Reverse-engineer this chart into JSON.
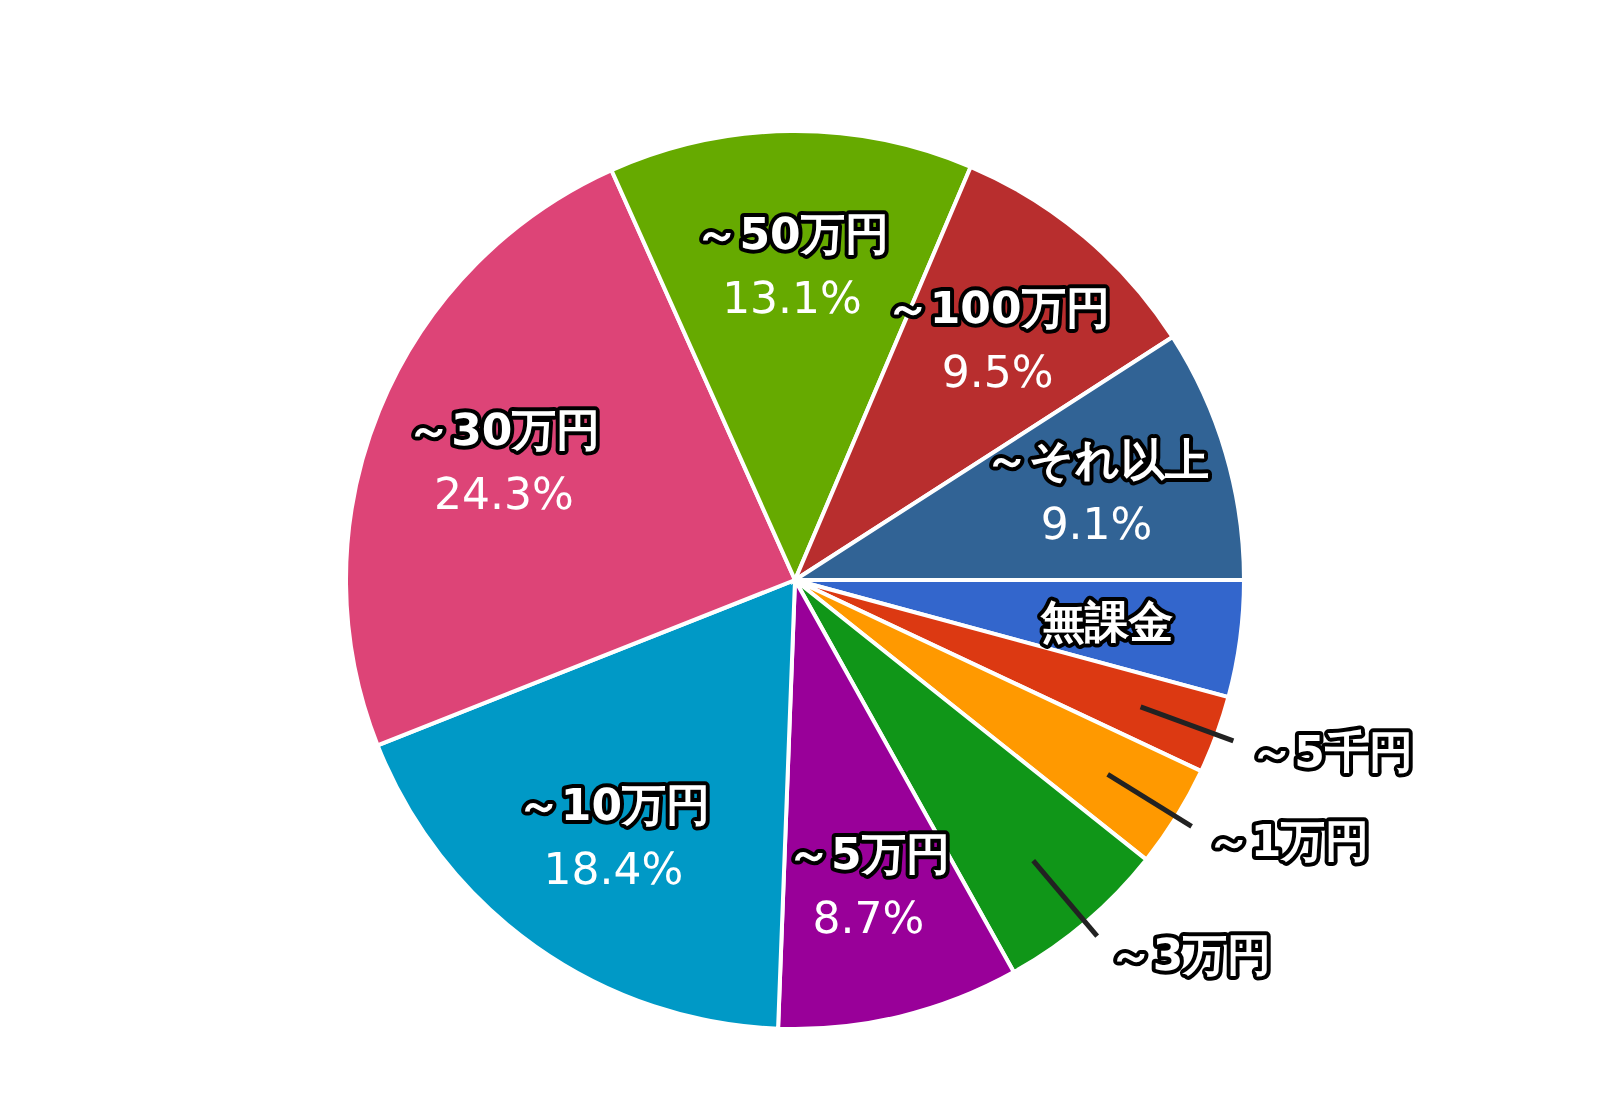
{
  "chart_data": {
    "type": "pie",
    "categories": [
      "無課金",
      "～5千円",
      "～1万円",
      "～3万円",
      "～5万円",
      "～10万円",
      "～30万円",
      "～50万円",
      "～100万円",
      "～それ以上"
    ],
    "values": [
      4.2,
      2.8,
      3.7,
      6.2,
      8.7,
      18.4,
      24.3,
      13.1,
      9.5,
      9.1
    ],
    "colors": [
      "#3366cc",
      "#dc3912",
      "#ff9900",
      "#109618",
      "#990099",
      "#0099c6",
      "#dd4477",
      "#66aa00",
      "#b82e2e",
      "#316395"
    ],
    "value_labels": [
      null,
      null,
      null,
      null,
      "8.7%",
      "18.4%",
      "24.3%",
      "13.1%",
      "9.5%",
      "9.1%"
    ]
  }
}
